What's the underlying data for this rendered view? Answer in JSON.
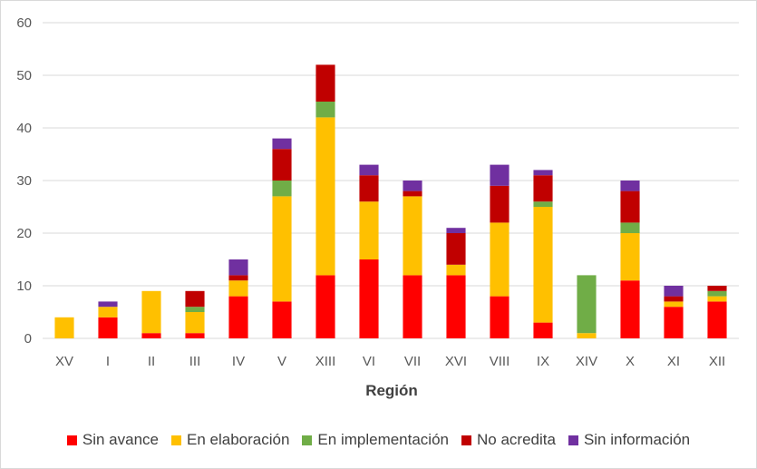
{
  "chart_data": {
    "type": "bar",
    "stacked": true,
    "title": "",
    "xlabel": "Región",
    "ylabel": "",
    "ylim": [
      0,
      60
    ],
    "yticks": [
      0,
      10,
      20,
      30,
      40,
      50,
      60
    ],
    "grid": true,
    "legend_position": "bottom",
    "categories": [
      "XV",
      "I",
      "II",
      "III",
      "IV",
      "V",
      "XIII",
      "VI",
      "VII",
      "XVI",
      "VIII",
      "IX",
      "XIV",
      "X",
      "XI",
      "XII"
    ],
    "series": [
      {
        "name": "Sin avance",
        "color": "#ff0000",
        "values": [
          0,
          4,
          1,
          1,
          8,
          7,
          12,
          15,
          12,
          12,
          8,
          3,
          0,
          11,
          6,
          7
        ]
      },
      {
        "name": "En elaboración",
        "color": "#ffc000",
        "values": [
          4,
          2,
          8,
          4,
          3,
          20,
          30,
          11,
          15,
          2,
          14,
          22,
          1,
          9,
          1,
          1
        ]
      },
      {
        "name": "En implementación",
        "color": "#70ad47",
        "values": [
          0,
          0,
          0,
          1,
          0,
          3,
          3,
          0,
          0,
          0,
          0,
          1,
          11,
          2,
          0,
          1
        ]
      },
      {
        "name": "No acredita",
        "color": "#c00000",
        "values": [
          0,
          0,
          0,
          3,
          1,
          6,
          7,
          5,
          1,
          6,
          7,
          5,
          0,
          6,
          1,
          1
        ]
      },
      {
        "name": "Sin información",
        "color": "#7030a0",
        "values": [
          0,
          1,
          0,
          0,
          3,
          2,
          0,
          2,
          2,
          1,
          4,
          1,
          0,
          2,
          2,
          0
        ]
      }
    ]
  }
}
